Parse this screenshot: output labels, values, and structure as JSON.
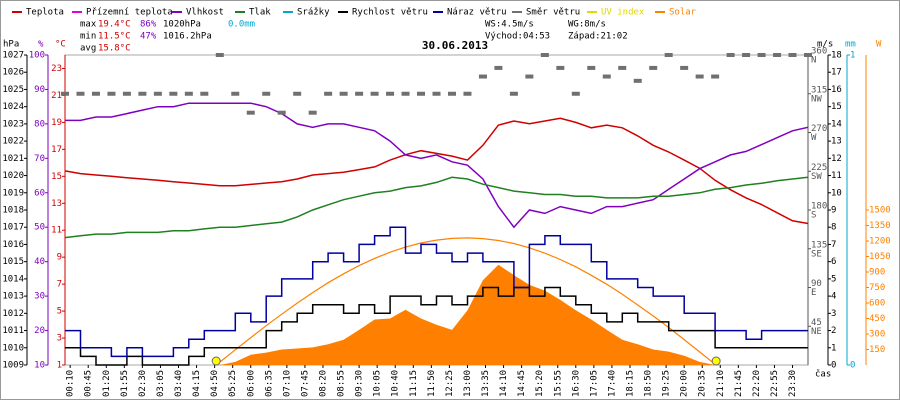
{
  "chart_data": {
    "type": "line",
    "title": "30.06.2013",
    "x_label": "čas",
    "x": [
      "00:00",
      "00:30",
      "01:00",
      "01:30",
      "02:00",
      "02:30",
      "03:00",
      "03:30",
      "04:00",
      "04:30",
      "05:00",
      "05:30",
      "06:00",
      "06:30",
      "07:00",
      "07:30",
      "08:00",
      "08:30",
      "09:00",
      "09:30",
      "10:00",
      "10:30",
      "11:00",
      "11:30",
      "12:00",
      "12:30",
      "13:00",
      "13:30",
      "14:00",
      "14:30",
      "15:00",
      "15:30",
      "16:00",
      "16:30",
      "17:00",
      "17:30",
      "18:00",
      "18:30",
      "19:00",
      "19:30",
      "20:00",
      "20:30",
      "21:00",
      "21:30",
      "22:00",
      "22:30",
      "23:00",
      "23:30",
      "24:00"
    ],
    "xticks": [
      "00:10",
      "00:45",
      "01:20",
      "01:55",
      "02:30",
      "03:05",
      "03:40",
      "04:15",
      "04:50",
      "05:25",
      "06:00",
      "06:35",
      "07:10",
      "07:45",
      "08:20",
      "08:55",
      "09:30",
      "10:05",
      "10:40",
      "11:15",
      "11:50",
      "12:25",
      "13:00",
      "13:35",
      "14:10",
      "14:45",
      "15:20",
      "15:55",
      "16:30",
      "17:05",
      "17:40",
      "18:15",
      "18:50",
      "19:25",
      "20:00",
      "20:35",
      "21:10",
      "21:45",
      "22:20",
      "22:55",
      "23:30"
    ],
    "axes": {
      "pressure": {
        "label": "hPa",
        "color": "#000000",
        "lim": [
          1009,
          1027
        ],
        "ticks": [
          1009,
          1010,
          1011,
          1012,
          1013,
          1014,
          1015,
          1016,
          1017,
          1018,
          1019,
          1020,
          1021,
          1022,
          1023,
          1024,
          1025,
          1026,
          1027
        ]
      },
      "humidity": {
        "label": "%",
        "color": "#8000c0",
        "lim": [
          10,
          100
        ],
        "ticks": [
          10,
          20,
          30,
          40,
          50,
          60,
          70,
          80,
          90,
          100
        ]
      },
      "temperature": {
        "label": "°C",
        "color": "#d00000",
        "lim": [
          1,
          24
        ],
        "ticks": [
          1,
          3,
          5,
          7,
          9,
          11,
          13,
          15,
          17,
          19,
          21,
          23
        ]
      },
      "direction": {
        "color": "#555555",
        "lim": [
          0,
          360
        ],
        "ticks": [
          {
            "value": 45,
            "label": "NE"
          },
          {
            "value": 90,
            "label": "E"
          },
          {
            "value": 135,
            "label": "SE"
          },
          {
            "value": 180,
            "label": "S"
          },
          {
            "value": 225,
            "label": "SW"
          },
          {
            "value": 270,
            "label": "W"
          },
          {
            "value": 315,
            "label": "NW"
          },
          {
            "value": 360,
            "label": "N"
          }
        ]
      },
      "wind": {
        "label": "m/s",
        "color": "#000000",
        "lim": [
          0,
          18
        ],
        "ticks": [
          0,
          1,
          2,
          3,
          4,
          5,
          6,
          7,
          8,
          9,
          10,
          11,
          12,
          13,
          14,
          15,
          16,
          17,
          18
        ]
      },
      "rain": {
        "label": "mm",
        "color": "#00a8d0",
        "lim": [
          0,
          1
        ],
        "ticks": [
          0,
          1
        ]
      },
      "solar": {
        "label": "W",
        "color": "#ff8000",
        "lim": [
          0,
          3000
        ],
        "ticks": [
          150,
          300,
          450,
          600,
          750,
          900,
          1050,
          1200,
          1350,
          1500
        ]
      }
    },
    "series": [
      {
        "name": "Teplota",
        "color": "#d00000",
        "axis": "temperature",
        "style": "line",
        "values": [
          15.4,
          15.2,
          15.1,
          15.0,
          14.9,
          14.8,
          14.7,
          14.6,
          14.5,
          14.4,
          14.3,
          14.3,
          14.4,
          14.5,
          14.6,
          14.8,
          15.1,
          15.2,
          15.3,
          15.5,
          15.7,
          16.2,
          16.6,
          16.9,
          16.7,
          16.5,
          16.2,
          17.3,
          18.8,
          19.1,
          18.9,
          19.1,
          19.3,
          19.0,
          18.6,
          18.8,
          18.6,
          18.0,
          17.3,
          16.8,
          16.2,
          15.6,
          14.7,
          14.0,
          13.4,
          12.9,
          12.3,
          11.7,
          11.5
        ]
      },
      {
        "name": "Přízemní teplota",
        "color": "#e000e0"
      },
      {
        "name": "Vlhkost",
        "color": "#8000c0",
        "axis": "humidity",
        "style": "line",
        "values": [
          81,
          81,
          82,
          82,
          83,
          84,
          85,
          85,
          86,
          86,
          86,
          86,
          86,
          85,
          83,
          80,
          79,
          80,
          80,
          79,
          78,
          75,
          71,
          70,
          71,
          69,
          68,
          64,
          56,
          50,
          55,
          54,
          56,
          55,
          54,
          56,
          56,
          57,
          58,
          61,
          64,
          67,
          69,
          71,
          72,
          74,
          76,
          78,
          79
        ]
      },
      {
        "name": "Tlak",
        "color": "#208020",
        "axis": "pressure",
        "style": "line",
        "values": [
          1016.4,
          1016.5,
          1016.6,
          1016.6,
          1016.7,
          1016.7,
          1016.7,
          1016.8,
          1016.8,
          1016.9,
          1017.0,
          1017.0,
          1017.1,
          1017.2,
          1017.3,
          1017.6,
          1018.0,
          1018.3,
          1018.6,
          1018.8,
          1019.0,
          1019.1,
          1019.3,
          1019.4,
          1019.6,
          1019.9,
          1019.8,
          1019.5,
          1019.3,
          1019.1,
          1019.0,
          1018.9,
          1018.9,
          1018.8,
          1018.8,
          1018.7,
          1018.7,
          1018.7,
          1018.8,
          1018.8,
          1018.9,
          1019.0,
          1019.2,
          1019.3,
          1019.45,
          1019.55,
          1019.7,
          1019.8,
          1019.9
        ]
      },
      {
        "name": "Srážky",
        "color": "#00a8d0"
      },
      {
        "name": "Rychlost větru",
        "color": "#000000",
        "axis": "wind",
        "style": "step",
        "values": [
          1,
          0.5,
          0,
          0,
          0.5,
          0,
          0,
          0,
          0.5,
          1,
          1,
          1,
          1,
          2,
          2.5,
          3,
          3.5,
          3.5,
          3,
          3.5,
          3,
          4,
          4,
          3.5,
          4,
          3.5,
          4,
          4.5,
          4,
          4.5,
          4,
          4.5,
          4,
          3.5,
          3,
          2.5,
          3,
          2.5,
          2.5,
          2,
          2,
          2,
          1,
          1,
          1,
          1,
          1,
          1,
          1
        ]
      },
      {
        "name": "Náraz větru",
        "color": "#0000a0",
        "axis": "wind",
        "style": "step",
        "values": [
          2,
          1,
          1,
          0.5,
          1,
          0.5,
          0.5,
          1,
          1.5,
          2,
          2,
          3,
          2.5,
          4,
          5,
          5,
          6,
          6.5,
          6,
          7,
          7.5,
          8,
          6.5,
          7,
          6.5,
          6,
          6.5,
          6,
          6,
          4.5,
          7,
          7.5,
          7,
          7,
          6,
          5,
          5,
          4.5,
          4,
          4,
          3,
          3,
          2,
          2,
          1.5,
          2,
          2,
          2,
          2
        ]
      },
      {
        "name": "Směr větru",
        "color": "#707070",
        "axis": "direction",
        "style": "points",
        "values": [
          315,
          315,
          315,
          315,
          315,
          315,
          315,
          315,
          315,
          315,
          360,
          315,
          293,
          315,
          293,
          315,
          293,
          315,
          315,
          315,
          315,
          315,
          315,
          315,
          315,
          315,
          315,
          335,
          345,
          315,
          335,
          360,
          345,
          315,
          345,
          335,
          345,
          330,
          345,
          360,
          345,
          335,
          335,
          360,
          360,
          360,
          360,
          360,
          360
        ]
      },
      {
        "name": "UV index",
        "color": "#e0d800"
      },
      {
        "name": "Solar",
        "color": "#ff8000",
        "axis": "solar",
        "style": "area",
        "values": [
          null,
          null,
          null,
          null,
          null,
          null,
          null,
          null,
          null,
          null,
          0,
          30,
          100,
          120,
          150,
          160,
          170,
          200,
          245,
          340,
          440,
          450,
          535,
          450,
          390,
          340,
          530,
          820,
          970,
          870,
          775,
          720,
          630,
          530,
          440,
          340,
          245,
          200,
          150,
          130,
          90,
          30,
          0,
          null,
          null,
          null,
          null,
          null,
          null
        ],
        "max_values": [
          null,
          null,
          null,
          null,
          null,
          null,
          null,
          null,
          null,
          null,
          28,
          147,
          265,
          380,
          492,
          599,
          701,
          796,
          883,
          962,
          1032,
          1092,
          1141,
          1181,
          1209,
          1225,
          1230,
          1223,
          1205,
          1176,
          1134,
          1082,
          1021,
          950,
          868,
          781,
          685,
          581,
          474,
          363,
          246,
          127,
          7,
          null,
          null,
          null,
          null,
          null,
          null
        ]
      }
    ],
    "stats": [
      {
        "label": "max",
        "temperature": "19.4°C",
        "humidity": "86%",
        "pressure": "1020hPa",
        "rain": "0.0mm"
      },
      {
        "label": "min",
        "temperature": "11.5°C",
        "humidity": "47%",
        "pressure": "1016.2hPa"
      },
      {
        "label": "avg",
        "temperature": "15.8°C"
      }
    ],
    "wind_info": {
      "speed": "WS:4.5m/s",
      "gust": "WG:8m/s"
    },
    "sun": {
      "rise_label": "Východ:",
      "rise": "04:53",
      "set_label": "Západ:",
      "set": "21:02"
    }
  }
}
